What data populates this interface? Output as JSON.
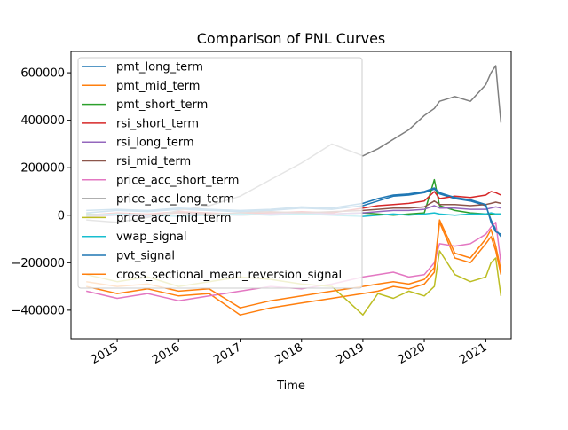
{
  "chart_data": {
    "type": "line",
    "title": "Comparison of PNL Curves",
    "xlabel": "Time",
    "ylabel": "",
    "xlim": [
      "2014-04-01",
      "2021-06-01"
    ],
    "ylim": [
      -520000,
      690000
    ],
    "x_ticks": [
      {
        "date": "2015-01-01",
        "label": "2015"
      },
      {
        "date": "2016-01-01",
        "label": "2016"
      },
      {
        "date": "2017-01-01",
        "label": "2017"
      },
      {
        "date": "2018-01-01",
        "label": "2018"
      },
      {
        "date": "2019-01-01",
        "label": "2019"
      },
      {
        "date": "2020-01-01",
        "label": "2020"
      },
      {
        "date": "2021-01-01",
        "label": "2021"
      }
    ],
    "y_ticks": [
      {
        "value": -400000,
        "label": "−400000"
      },
      {
        "value": -200000,
        "label": "−200000"
      },
      {
        "value": 0,
        "label": "0"
      },
      {
        "value": 200000,
        "label": "200000"
      },
      {
        "value": 400000,
        "label": "400000"
      },
      {
        "value": 600000,
        "label": "600000"
      }
    ],
    "grid": false,
    "legend_position": "upper-left",
    "x_dates": [
      "2014-07",
      "2015-01",
      "2015-07",
      "2016-01",
      "2016-07",
      "2017-01",
      "2017-07",
      "2018-01",
      "2018-07",
      "2019-01",
      "2019-04",
      "2019-07",
      "2019-10",
      "2020-01",
      "2020-03",
      "2020-04",
      "2020-07",
      "2020-10",
      "2021-01",
      "2021-02",
      "2021-03",
      "2021-04"
    ],
    "series": [
      {
        "name": "pmt_long_term",
        "color": "#1f77b4",
        "values": [
          10000,
          20000,
          15000,
          25000,
          20000,
          15000,
          20000,
          30000,
          25000,
          40000,
          60000,
          80000,
          85000,
          95000,
          110000,
          90000,
          70000,
          60000,
          40000,
          -20000,
          -60000,
          -90000
        ]
      },
      {
        "name": "pmt_mid_term",
        "color": "#ff7f0e",
        "values": [
          -300000,
          -330000,
          -310000,
          -340000,
          -330000,
          -420000,
          -390000,
          -370000,
          -350000,
          -330000,
          -320000,
          -300000,
          -310000,
          -290000,
          -240000,
          -30000,
          -180000,
          -200000,
          -120000,
          -90000,
          -150000,
          -250000
        ]
      },
      {
        "name": "pmt_short_term",
        "color": "#2ca02c",
        "values": [
          5000,
          0,
          5000,
          10000,
          5000,
          0,
          5000,
          10000,
          5000,
          10000,
          5000,
          0,
          5000,
          10000,
          150000,
          40000,
          20000,
          10000,
          5000,
          5000,
          5000,
          5000
        ]
      },
      {
        "name": "rsi_short_term",
        "color": "#d62728",
        "values": [
          0,
          10000,
          5000,
          15000,
          10000,
          5000,
          10000,
          15000,
          10000,
          30000,
          40000,
          45000,
          50000,
          60000,
          100000,
          70000,
          80000,
          75000,
          85000,
          100000,
          95000,
          85000
        ]
      },
      {
        "name": "rsi_long_term",
        "color": "#9467bd",
        "values": [
          -5000,
          0,
          -5000,
          0,
          5000,
          0,
          5000,
          10000,
          5000,
          10000,
          15000,
          20000,
          20000,
          25000,
          40000,
          30000,
          30000,
          25000,
          25000,
          30000,
          35000,
          30000
        ]
      },
      {
        "name": "rsi_mid_term",
        "color": "#8c564b",
        "values": [
          0,
          5000,
          0,
          10000,
          5000,
          10000,
          15000,
          10000,
          15000,
          20000,
          25000,
          30000,
          30000,
          35000,
          60000,
          45000,
          45000,
          40000,
          45000,
          50000,
          55000,
          50000
        ]
      },
      {
        "name": "price_acc_short_term",
        "color": "#e377c2",
        "values": [
          -320000,
          -350000,
          -330000,
          -360000,
          -340000,
          -320000,
          -300000,
          -310000,
          -290000,
          -260000,
          -250000,
          -240000,
          -260000,
          -250000,
          -200000,
          -120000,
          -130000,
          -120000,
          -80000,
          -50000,
          -30000,
          -200000
        ]
      },
      {
        "name": "price_acc_long_term",
        "color": "#7f7f7f",
        "values": [
          -20000,
          -30000,
          -10000,
          20000,
          40000,
          80000,
          150000,
          220000,
          300000,
          250000,
          280000,
          320000,
          360000,
          420000,
          450000,
          480000,
          500000,
          480000,
          550000,
          600000,
          630000,
          390000
        ]
      },
      {
        "name": "price_acc_mid_term",
        "color": "#bcbd22",
        "values": [
          -250000,
          -280000,
          -260000,
          -300000,
          -280000,
          -260000,
          -270000,
          -290000,
          -300000,
          -420000,
          -330000,
          -350000,
          -320000,
          -340000,
          -300000,
          -150000,
          -250000,
          -280000,
          -260000,
          -200000,
          -180000,
          -340000
        ]
      },
      {
        "name": "vwap_signal",
        "color": "#17becf",
        "values": [
          0,
          5000,
          0,
          -5000,
          0,
          5000,
          0,
          5000,
          0,
          -5000,
          0,
          5000,
          0,
          5000,
          10000,
          5000,
          0,
          5000,
          5000,
          10000,
          5000,
          5000
        ]
      },
      {
        "name": "pvt_signal",
        "color": "#1f77b4",
        "values": [
          20000,
          25000,
          20000,
          30000,
          25000,
          20000,
          25000,
          35000,
          30000,
          50000,
          70000,
          85000,
          90000,
          100000,
          115000,
          95000,
          75000,
          65000,
          45000,
          -30000,
          -70000,
          -80000
        ]
      },
      {
        "name": "cross_sectional_mean_reversion_signal",
        "color": "#ff7f0e",
        "values": [
          -280000,
          -300000,
          -290000,
          -320000,
          -310000,
          -390000,
          -360000,
          -340000,
          -320000,
          -300000,
          -290000,
          -280000,
          -290000,
          -270000,
          -220000,
          -20000,
          -160000,
          -180000,
          -100000,
          -60000,
          -130000,
          -230000
        ]
      }
    ]
  }
}
